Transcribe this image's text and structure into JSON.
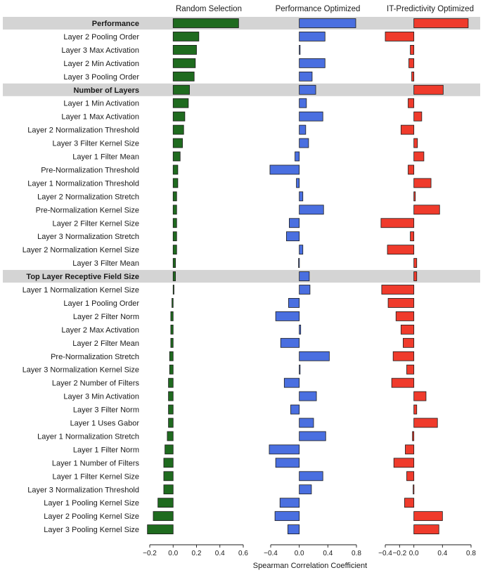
{
  "chart_data": {
    "type": "bar",
    "orientation": "horizontal",
    "xlabel": "Spearman Correlation Coefficient",
    "categories": [
      "Performance",
      "Layer 2 Pooling Order",
      "Layer 3 Max Activation",
      "Layer 2 Min Activation",
      "Layer 3 Pooling Order",
      "Number of Layers",
      "Layer 1 Min Activation",
      "Layer 1 Max Activation",
      "Layer 2 Normalization Threshold",
      "Layer 3 Filter Kernel Size",
      "Layer 1 Filter Mean",
      "Pre-Normalization Threshold",
      "Layer 1 Normalization Threshold",
      "Layer 2 Normalization Stretch",
      "Pre-Normalization Kernel Size",
      "Layer 2 Filter Kernel Size",
      "Layer 3 Normalization Stretch",
      "Layer 2 Normalization Kernel Size",
      "Layer 3 Filter Mean",
      "Top Layer Receptive Field Size",
      "Layer 1 Normalization Kernel Size",
      "Layer 1 Pooling Order",
      "Layer 2 Filter Norm",
      "Layer 2 Max Activation",
      "Layer 2 Filter Mean",
      "Pre-Normalization Stretch",
      "Layer 3 Normalization Kernel Size",
      "Layer 2 Number of Filters",
      "Layer 3 Min Activation",
      "Layer 3 Filter Norm",
      "Layer 1 Uses Gabor",
      "Layer 1 Normalization Stretch",
      "Layer 1 Filter Norm",
      "Layer 1 Number of Filters",
      "Layer 1 Filter Kernel Size",
      "Layer 3 Normalization Threshold",
      "Layer 1 Pooling Kernel Size",
      "Layer 2 Pooling Kernel Size",
      "Layer 3 Pooling Kernel Size"
    ],
    "highlighted_categories": [
      "Performance",
      "Number of Layers",
      "Top Layer Receptive Field Size"
    ],
    "series": [
      {
        "name": "Random Selection",
        "color": "#1f6b1f",
        "xlim": [
          -0.2,
          0.6
        ],
        "xticks": [
          -0.2,
          0.0,
          0.2,
          0.4,
          0.6
        ],
        "tick_labels": [
          "−0.2",
          "0.0",
          "0.2",
          "0.4",
          "0.6"
        ],
        "values": [
          0.56,
          0.22,
          0.2,
          0.19,
          0.18,
          0.14,
          0.13,
          0.1,
          0.09,
          0.08,
          0.06,
          0.04,
          0.04,
          0.03,
          0.03,
          0.03,
          0.03,
          0.03,
          0.02,
          0.02,
          0.0,
          -0.01,
          -0.02,
          -0.02,
          -0.02,
          -0.03,
          -0.03,
          -0.04,
          -0.04,
          -0.04,
          -0.04,
          -0.05,
          -0.07,
          -0.08,
          -0.08,
          -0.08,
          -0.13,
          -0.17,
          -0.22
        ]
      },
      {
        "name": "Performance Optimized",
        "color": "#4a6fe0",
        "xlim": [
          -0.4,
          0.8
        ],
        "xticks": [
          -0.4,
          0.0,
          0.4,
          0.8
        ],
        "tick_labels": [
          "−0.4",
          "0.0",
          "0.4",
          "0.8"
        ],
        "values": [
          0.79,
          0.36,
          0.0,
          0.36,
          0.18,
          0.23,
          0.1,
          0.33,
          0.09,
          0.13,
          -0.06,
          -0.41,
          -0.04,
          0.05,
          0.34,
          -0.14,
          -0.18,
          0.05,
          -0.01,
          0.14,
          0.15,
          -0.15,
          -0.33,
          0.02,
          -0.26,
          0.42,
          0.0,
          -0.21,
          0.24,
          -0.12,
          0.2,
          0.37,
          -0.42,
          -0.33,
          0.33,
          0.17,
          -0.27,
          -0.34,
          -0.16
        ]
      },
      {
        "name": "IT-Predictivity Optimized",
        "color": "#ef3b2c",
        "xlim": [
          -0.4,
          0.8
        ],
        "xticks": [
          -0.4,
          -0.2,
          0.0,
          0.4,
          0.8
        ],
        "tick_labels": [
          "−0.4",
          "−0.2",
          "0.0",
          "0.4",
          "0.8"
        ],
        "values": [
          0.76,
          -0.4,
          -0.05,
          -0.07,
          -0.03,
          0.41,
          -0.08,
          0.11,
          -0.18,
          0.05,
          0.14,
          -0.08,
          0.24,
          0.02,
          0.36,
          -0.46,
          -0.05,
          -0.37,
          0.04,
          0.04,
          -0.45,
          -0.36,
          -0.25,
          -0.18,
          -0.15,
          -0.29,
          -0.1,
          -0.31,
          0.17,
          0.04,
          0.33,
          -0.02,
          -0.12,
          -0.28,
          -0.1,
          -0.01,
          -0.13,
          0.4,
          0.35
        ]
      }
    ]
  }
}
